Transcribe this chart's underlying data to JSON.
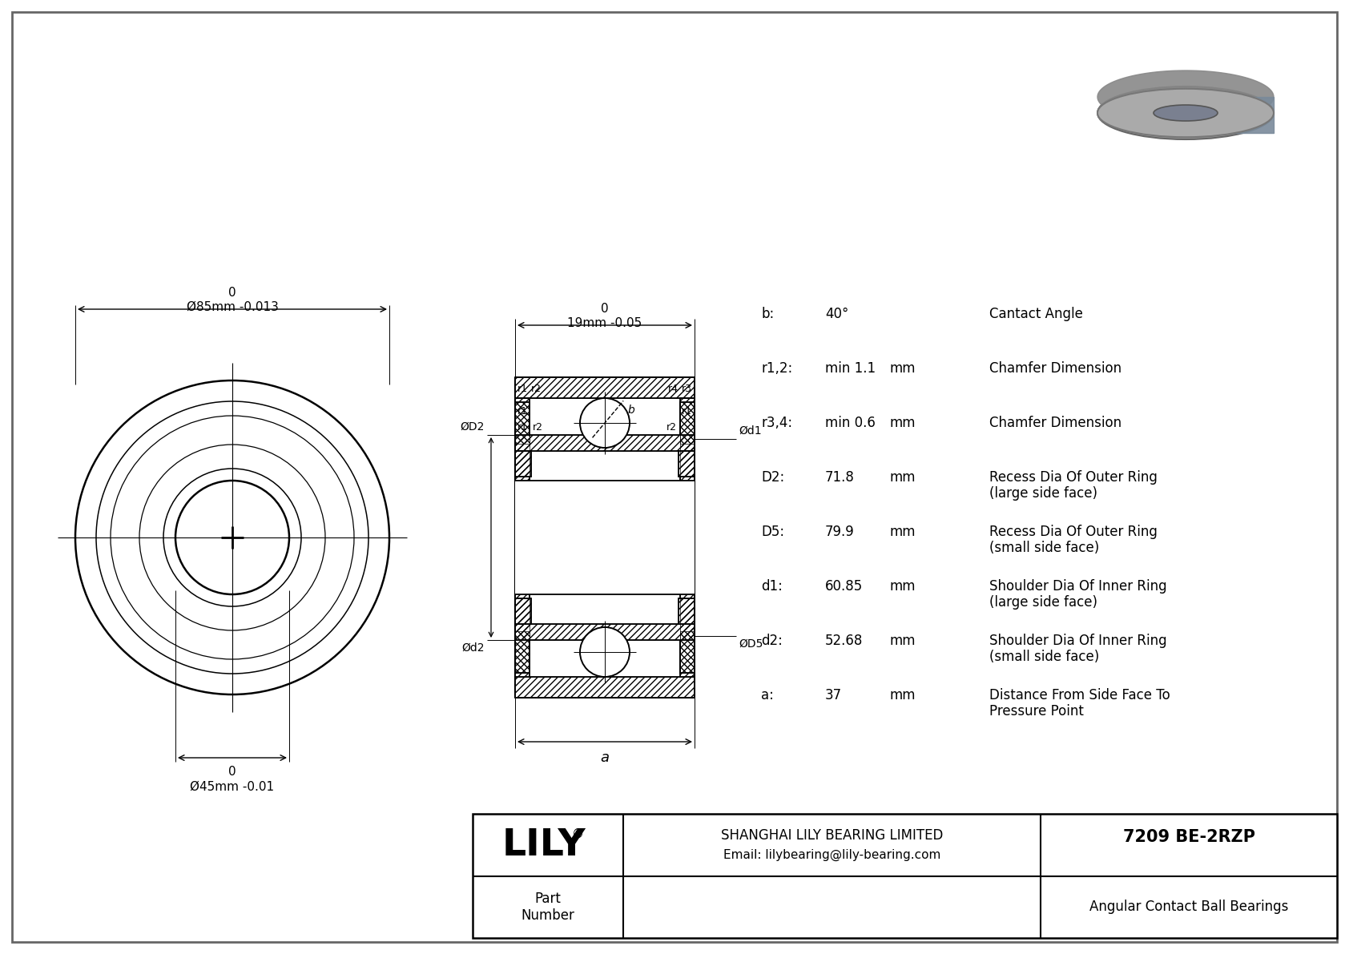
{
  "bg_color": "#ffffff",
  "line_color": "#000000",
  "specs": [
    {
      "key": "b:",
      "value": "40°",
      "unit": "",
      "desc": "Cantact Angle"
    },
    {
      "key": "r1,2:",
      "value": "min 1.1",
      "unit": "mm",
      "desc": "Chamfer Dimension"
    },
    {
      "key": "r3,4:",
      "value": "min 0.6",
      "unit": "mm",
      "desc": "Chamfer Dimension"
    },
    {
      "key": "D2:",
      "value": "71.8",
      "unit": "mm",
      "desc": "Recess Dia Of Outer Ring\n(large side face)"
    },
    {
      "key": "D5:",
      "value": "79.9",
      "unit": "mm",
      "desc": "Recess Dia Of Outer Ring\n(small side face)"
    },
    {
      "key": "d1:",
      "value": "60.85",
      "unit": "mm",
      "desc": "Shoulder Dia Of Inner Ring\n(large side face)"
    },
    {
      "key": "d2:",
      "value": "52.68",
      "unit": "mm",
      "desc": "Shoulder Dia Of Inner Ring\n(small side face)"
    },
    {
      "key": "a:",
      "value": "37",
      "unit": "mm",
      "desc": "Distance From Side Face To\nPressure Point"
    }
  ],
  "outer_dia_upper": "0",
  "outer_dia_label": "Ø85mm -0.013",
  "inner_dia_upper": "0",
  "inner_dia_label": "Ø45mm -0.01",
  "width_upper": "0",
  "width_label": "19mm -0.05",
  "company_full": "SHANGHAI LILY BEARING LIMITED",
  "email": "Email: lilybearing@lily-bearing.com",
  "part_number": "7209 BE-2RZP",
  "part_type": "Angular Contact Ball Bearings",
  "lily_text": "LILY",
  "registered": "®",
  "part_label": "Part\nNumber"
}
